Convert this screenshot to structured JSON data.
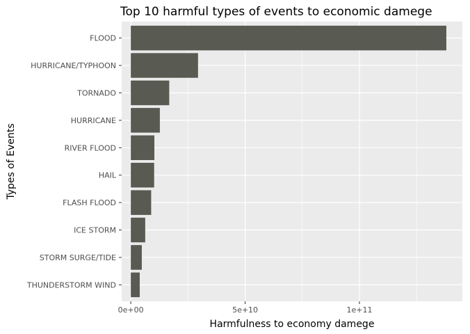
{
  "chart_data": {
    "type": "bar",
    "orientation": "horizontal",
    "title": "Top 10 harmful types of events to economic damege",
    "xlabel": "Harmfulness to economy damege",
    "ylabel": "Types of Events",
    "categories": [
      "FLOOD",
      "HURRICANE/TYPHOON",
      "TORNADO",
      "HURRICANE",
      "RIVER FLOOD",
      "HAIL",
      "FLASH FLOOD",
      "ICE STORM",
      "STORM SURGE/TIDE",
      "THUNDERSTORM WIND"
    ],
    "values": [
      138000000000,
      29400000000,
      16800000000,
      12700000000,
      10300000000,
      10200000000,
      8900000000,
      6300000000,
      4800000000,
      3900000000
    ],
    "xlim": [
      -4000000000,
      145000000000
    ],
    "x_ticks": [
      0,
      50000000000,
      100000000000
    ],
    "x_tick_labels": [
      "0e+00",
      "5e+10",
      "1e+11"
    ],
    "grid": true,
    "bar_color": "#595a52",
    "panel_color": "#ebebeb",
    "grid_color": "#ffffff"
  }
}
